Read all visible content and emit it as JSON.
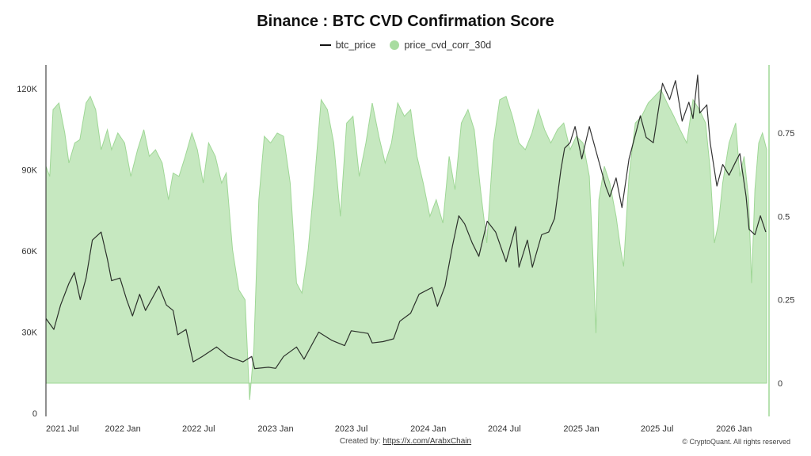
{
  "chart_data": {
    "type": "line+area",
    "title": "Binance : BTC CVD Confirmation Score",
    "watermark": "CryptoQuant",
    "legend": [
      "btc_price",
      "price_cvd_corr_30d"
    ],
    "legend_position": "top-center",
    "colors": {
      "btc_price": "#111111",
      "price_cvd_corr_30d": "#c6e8c0",
      "area_edge": "#9fd796"
    },
    "x_ticks": [
      "2021 Jul",
      "2022 Jan",
      "2022 Jul",
      "2023 Jan",
      "2023 Jul",
      "2024 Jan",
      "2024 Jul",
      "2025 Jan",
      "2025 Jul",
      "2026 Jan"
    ],
    "x_range": [
      "2021-07-01",
      "2026-03-20"
    ],
    "y_left": {
      "ticks": [
        "0",
        "30K",
        "60K",
        "90K",
        "120K"
      ],
      "range": [
        0,
        120000
      ]
    },
    "y_right": {
      "ticks": [
        "0",
        "0.25",
        "0.5",
        "0.75"
      ],
      "range": [
        -0.1,
        0.92
      ]
    },
    "grid": "off",
    "series": [
      {
        "name": "btc_price",
        "type": "line",
        "axis": "left",
        "points": [
          [
            "2021-07-01",
            35000
          ],
          [
            "2021-07-20",
            31000
          ],
          [
            "2021-08-05",
            40000
          ],
          [
            "2021-08-25",
            48000
          ],
          [
            "2021-09-07",
            52000
          ],
          [
            "2021-09-21",
            42000
          ],
          [
            "2021-10-05",
            50000
          ],
          [
            "2021-10-20",
            64000
          ],
          [
            "2021-11-10",
            67000
          ],
          [
            "2021-11-25",
            57000
          ],
          [
            "2021-12-05",
            49000
          ],
          [
            "2021-12-25",
            50000
          ],
          [
            "2022-01-10",
            42000
          ],
          [
            "2022-01-24",
            36000
          ],
          [
            "2022-02-10",
            44000
          ],
          [
            "2022-02-24",
            38000
          ],
          [
            "2022-03-28",
            47000
          ],
          [
            "2022-04-15",
            40000
          ],
          [
            "2022-05-01",
            38000
          ],
          [
            "2022-05-12",
            29000
          ],
          [
            "2022-06-01",
            31000
          ],
          [
            "2022-06-18",
            19000
          ],
          [
            "2022-07-10",
            21000
          ],
          [
            "2022-08-13",
            24500
          ],
          [
            "2022-09-10",
            21000
          ],
          [
            "2022-10-15",
            19000
          ],
          [
            "2022-11-05",
            21000
          ],
          [
            "2022-11-12",
            16500
          ],
          [
            "2022-12-15",
            17000
          ],
          [
            "2023-01-01",
            16600
          ],
          [
            "2023-01-20",
            21000
          ],
          [
            "2023-02-20",
            24500
          ],
          [
            "2023-03-10",
            20000
          ],
          [
            "2023-04-14",
            30000
          ],
          [
            "2023-05-15",
            27000
          ],
          [
            "2023-06-15",
            25000
          ],
          [
            "2023-07-01",
            30500
          ],
          [
            "2023-08-10",
            29500
          ],
          [
            "2023-08-20",
            26000
          ],
          [
            "2023-09-15",
            26500
          ],
          [
            "2023-10-10",
            27500
          ],
          [
            "2023-10-25",
            34000
          ],
          [
            "2023-11-20",
            37000
          ],
          [
            "2023-12-10",
            44000
          ],
          [
            "2024-01-10",
            46500
          ],
          [
            "2024-01-23",
            39500
          ],
          [
            "2024-02-10",
            47000
          ],
          [
            "2024-02-28",
            62000
          ],
          [
            "2024-03-14",
            73000
          ],
          [
            "2024-03-28",
            70000
          ],
          [
            "2024-04-15",
            63000
          ],
          [
            "2024-05-01",
            58000
          ],
          [
            "2024-05-21",
            71000
          ],
          [
            "2024-06-10",
            67000
          ],
          [
            "2024-07-05",
            56000
          ],
          [
            "2024-07-28",
            69000
          ],
          [
            "2024-08-05",
            54000
          ],
          [
            "2024-08-25",
            64000
          ],
          [
            "2024-09-06",
            54000
          ],
          [
            "2024-09-28",
            66000
          ],
          [
            "2024-10-15",
            67000
          ],
          [
            "2024-10-29",
            72000
          ],
          [
            "2024-11-13",
            90000
          ],
          [
            "2024-11-22",
            98000
          ],
          [
            "2024-12-05",
            100000
          ],
          [
            "2024-12-17",
            106000
          ],
          [
            "2025-01-02",
            94000
          ],
          [
            "2025-01-20",
            106000
          ],
          [
            "2025-02-05",
            97000
          ],
          [
            "2025-02-28",
            84000
          ],
          [
            "2025-03-10",
            80000
          ],
          [
            "2025-03-25",
            87000
          ],
          [
            "2025-04-08",
            76000
          ],
          [
            "2025-04-25",
            94000
          ],
          [
            "2025-05-22",
            110000
          ],
          [
            "2025-06-05",
            102000
          ],
          [
            "2025-06-22",
            100000
          ],
          [
            "2025-07-14",
            122000
          ],
          [
            "2025-07-31",
            116000
          ],
          [
            "2025-08-14",
            123000
          ],
          [
            "2025-08-30",
            108000
          ],
          [
            "2025-09-15",
            115000
          ],
          [
            "2025-09-25",
            109000
          ],
          [
            "2025-10-06",
            125000
          ],
          [
            "2025-10-11",
            111000
          ],
          [
            "2025-10-28",
            114000
          ],
          [
            "2025-11-05",
            100000
          ],
          [
            "2025-11-21",
            84000
          ],
          [
            "2025-12-05",
            92000
          ],
          [
            "2025-12-20",
            88000
          ],
          [
            "2026-01-05",
            93000
          ],
          [
            "2026-01-15",
            96000
          ],
          [
            "2026-01-30",
            80000
          ],
          [
            "2026-02-06",
            68000
          ],
          [
            "2026-02-20",
            66000
          ],
          [
            "2026-03-05",
            73000
          ],
          [
            "2026-03-18",
            67000
          ]
        ]
      },
      {
        "name": "price_cvd_corr_30d",
        "type": "area",
        "axis": "right",
        "points": [
          [
            "2021-07-01",
            0.65
          ],
          [
            "2021-07-10",
            0.62
          ],
          [
            "2021-07-18",
            0.82
          ],
          [
            "2021-08-01",
            0.84
          ],
          [
            "2021-08-15",
            0.75
          ],
          [
            "2021-08-25",
            0.66
          ],
          [
            "2021-09-08",
            0.72
          ],
          [
            "2021-09-20",
            0.73
          ],
          [
            "2021-10-05",
            0.84
          ],
          [
            "2021-10-15",
            0.86
          ],
          [
            "2021-10-28",
            0.82
          ],
          [
            "2021-11-10",
            0.7
          ],
          [
            "2021-11-25",
            0.76
          ],
          [
            "2021-12-05",
            0.7
          ],
          [
            "2021-12-20",
            0.75
          ],
          [
            "2022-01-05",
            0.72
          ],
          [
            "2022-01-20",
            0.62
          ],
          [
            "2022-02-05",
            0.7
          ],
          [
            "2022-02-20",
            0.76
          ],
          [
            "2022-03-05",
            0.68
          ],
          [
            "2022-03-20",
            0.7
          ],
          [
            "2022-04-05",
            0.66
          ],
          [
            "2022-04-20",
            0.55
          ],
          [
            "2022-05-01",
            0.63
          ],
          [
            "2022-05-15",
            0.62
          ],
          [
            "2022-05-30",
            0.68
          ],
          [
            "2022-06-15",
            0.75
          ],
          [
            "2022-06-28",
            0.7
          ],
          [
            "2022-07-12",
            0.6
          ],
          [
            "2022-07-25",
            0.72
          ],
          [
            "2022-08-10",
            0.68
          ],
          [
            "2022-08-25",
            0.6
          ],
          [
            "2022-09-05",
            0.63
          ],
          [
            "2022-09-20",
            0.4
          ],
          [
            "2022-10-05",
            0.28
          ],
          [
            "2022-10-20",
            0.25
          ],
          [
            "2022-10-31",
            -0.05
          ],
          [
            "2022-11-10",
            0.1
          ],
          [
            "2022-11-22",
            0.55
          ],
          [
            "2022-12-05",
            0.74
          ],
          [
            "2022-12-20",
            0.72
          ],
          [
            "2023-01-05",
            0.75
          ],
          [
            "2023-01-20",
            0.74
          ],
          [
            "2023-02-05",
            0.6
          ],
          [
            "2023-02-20",
            0.3
          ],
          [
            "2023-03-05",
            0.27
          ],
          [
            "2023-03-20",
            0.4
          ],
          [
            "2023-04-05",
            0.62
          ],
          [
            "2023-04-20",
            0.85
          ],
          [
            "2023-05-05",
            0.82
          ],
          [
            "2023-05-20",
            0.72
          ],
          [
            "2023-06-05",
            0.5
          ],
          [
            "2023-06-20",
            0.78
          ],
          [
            "2023-07-05",
            0.8
          ],
          [
            "2023-07-20",
            0.62
          ],
          [
            "2023-08-05",
            0.72
          ],
          [
            "2023-08-20",
            0.84
          ],
          [
            "2023-09-05",
            0.74
          ],
          [
            "2023-09-20",
            0.66
          ],
          [
            "2023-10-05",
            0.72
          ],
          [
            "2023-10-20",
            0.84
          ],
          [
            "2023-11-05",
            0.8
          ],
          [
            "2023-11-20",
            0.82
          ],
          [
            "2023-12-05",
            0.68
          ],
          [
            "2023-12-20",
            0.6
          ],
          [
            "2024-01-05",
            0.5
          ],
          [
            "2024-01-20",
            0.55
          ],
          [
            "2024-02-05",
            0.48
          ],
          [
            "2024-02-20",
            0.68
          ],
          [
            "2024-03-05",
            0.58
          ],
          [
            "2024-03-20",
            0.78
          ],
          [
            "2024-04-05",
            0.82
          ],
          [
            "2024-04-20",
            0.76
          ],
          [
            "2024-05-05",
            0.58
          ],
          [
            "2024-05-20",
            0.42
          ],
          [
            "2024-06-05",
            0.72
          ],
          [
            "2024-06-20",
            0.85
          ],
          [
            "2024-07-05",
            0.86
          ],
          [
            "2024-07-20",
            0.8
          ],
          [
            "2024-08-05",
            0.72
          ],
          [
            "2024-08-20",
            0.7
          ],
          [
            "2024-09-05",
            0.75
          ],
          [
            "2024-09-20",
            0.82
          ],
          [
            "2024-10-05",
            0.76
          ],
          [
            "2024-10-20",
            0.72
          ],
          [
            "2024-11-05",
            0.76
          ],
          [
            "2024-11-20",
            0.78
          ],
          [
            "2024-12-05",
            0.7
          ],
          [
            "2024-12-20",
            0.74
          ],
          [
            "2025-01-05",
            0.72
          ],
          [
            "2025-01-20",
            0.62
          ],
          [
            "2025-01-28",
            0.4
          ],
          [
            "2025-02-05",
            0.15
          ],
          [
            "2025-02-12",
            0.55
          ],
          [
            "2025-02-25",
            0.65
          ],
          [
            "2025-03-10",
            0.6
          ],
          [
            "2025-03-25",
            0.5
          ],
          [
            "2025-04-05",
            0.4
          ],
          [
            "2025-04-12",
            0.35
          ],
          [
            "2025-04-25",
            0.62
          ],
          [
            "2025-05-10",
            0.78
          ],
          [
            "2025-05-25",
            0.8
          ],
          [
            "2025-06-10",
            0.84
          ],
          [
            "2025-06-25",
            0.86
          ],
          [
            "2025-07-10",
            0.88
          ],
          [
            "2025-07-25",
            0.84
          ],
          [
            "2025-08-10",
            0.8
          ],
          [
            "2025-08-25",
            0.76
          ],
          [
            "2025-09-10",
            0.72
          ],
          [
            "2025-09-25",
            0.85
          ],
          [
            "2025-10-10",
            0.82
          ],
          [
            "2025-10-25",
            0.78
          ],
          [
            "2025-11-05",
            0.64
          ],
          [
            "2025-11-15",
            0.42
          ],
          [
            "2025-11-25",
            0.48
          ],
          [
            "2025-12-05",
            0.6
          ],
          [
            "2025-12-20",
            0.72
          ],
          [
            "2026-01-05",
            0.78
          ],
          [
            "2026-01-15",
            0.62
          ],
          [
            "2026-01-25",
            0.68
          ],
          [
            "2026-02-05",
            0.55
          ],
          [
            "2026-02-12",
            0.3
          ],
          [
            "2026-02-20",
            0.58
          ],
          [
            "2026-03-01",
            0.72
          ],
          [
            "2026-03-10",
            0.75
          ],
          [
            "2026-03-20",
            0.7
          ]
        ]
      }
    ]
  },
  "footer": {
    "created_by_label": "Created by:",
    "created_by_link": "https://x.com/ArabxChain",
    "copyright": "© CryptoQuant. All rights reserved"
  }
}
